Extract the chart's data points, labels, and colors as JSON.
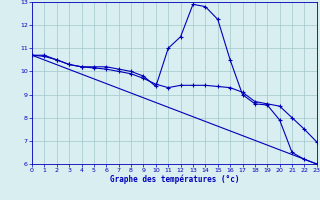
{
  "xlabel": "Graphe des températures (°c)",
  "background_color": "#d8eef0",
  "grid_color": "#a0c8cc",
  "line_color": "#0000bb",
  "xlim_min": 0,
  "xlim_max": 23,
  "ylim_min": 6,
  "ylim_max": 13,
  "yticks": [
    6,
    7,
    8,
    9,
    10,
    11,
    12,
    13
  ],
  "xticks": [
    0,
    1,
    2,
    3,
    4,
    5,
    6,
    7,
    8,
    9,
    10,
    11,
    12,
    13,
    14,
    15,
    16,
    17,
    18,
    19,
    20,
    21,
    22,
    23
  ],
  "series1_x": [
    0,
    1,
    2,
    3,
    4,
    5,
    6,
    7,
    8,
    9,
    10,
    11,
    12,
    13,
    14,
    15,
    16,
    17,
    18,
    19,
    20,
    21,
    22,
    23
  ],
  "series1_y": [
    10.7,
    10.7,
    10.5,
    10.3,
    10.2,
    10.2,
    10.2,
    10.1,
    10.0,
    9.8,
    9.35,
    11.0,
    11.5,
    12.9,
    12.8,
    12.25,
    10.5,
    9.0,
    8.6,
    8.55,
    7.9,
    6.5,
    6.2,
    6.0
  ],
  "series2_x": [
    0,
    1,
    2,
    3,
    4,
    5,
    6,
    7,
    8,
    9,
    10,
    11,
    12,
    13,
    14,
    15,
    16,
    17,
    18,
    19,
    20,
    21,
    22,
    23
  ],
  "series2_y": [
    10.7,
    10.65,
    10.5,
    10.3,
    10.2,
    10.15,
    10.1,
    10.0,
    9.9,
    9.7,
    9.45,
    9.3,
    9.4,
    9.4,
    9.4,
    9.35,
    9.3,
    9.1,
    8.7,
    8.6,
    8.5,
    8.0,
    7.5,
    6.95
  ],
  "series3_x": [
    0,
    23
  ],
  "series3_y": [
    10.7,
    6.0
  ]
}
